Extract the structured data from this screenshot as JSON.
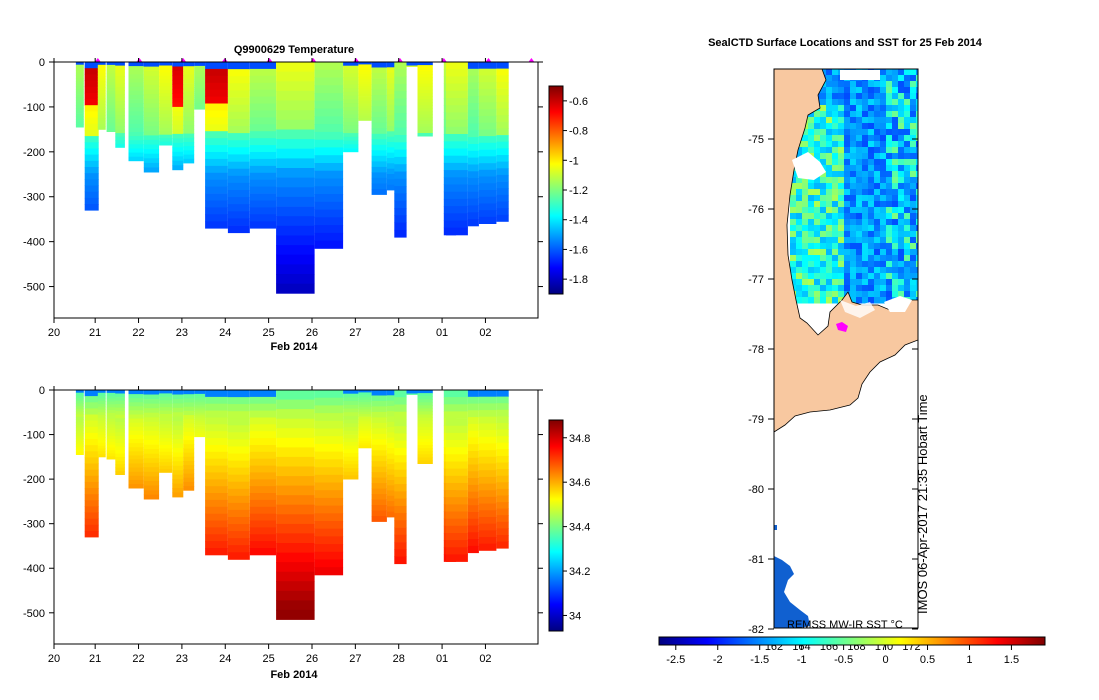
{
  "chart_data": [
    {
      "type": "heatmap",
      "id": "temperature",
      "title": "Q9900629  Temperature",
      "xlabel": "Feb 2014",
      "x_tick_labels": [
        "20",
        "21",
        "22",
        "23",
        "24",
        "25",
        "26",
        "27",
        "28",
        "01",
        "02"
      ],
      "y_tick_labels": [
        "0",
        "-100",
        "-200",
        "-300",
        "-400",
        "-500"
      ],
      "ylim": [
        -570,
        0
      ],
      "colorbar": {
        "ticks": [
          "-0.6",
          "-0.8",
          "-1",
          "-1.2",
          "-1.4",
          "-1.6",
          "-1.8"
        ],
        "range": [
          -1.9,
          -0.5
        ]
      },
      "profiles": [
        {
          "t": 20.55,
          "w": 0.18,
          "bottom": -145
        },
        {
          "t": 20.75,
          "w": 0.32,
          "bottom": -330
        },
        {
          "t": 21.05,
          "w": 0.18,
          "bottom": -150
        },
        {
          "t": 21.25,
          "w": 0.22,
          "bottom": -155
        },
        {
          "t": 21.45,
          "w": 0.22,
          "bottom": -190
        },
        {
          "t": 21.75,
          "w": 0.35,
          "bottom": -220
        },
        {
          "t": 22.1,
          "w": 0.35,
          "bottom": -245
        },
        {
          "t": 22.45,
          "w": 0.3,
          "bottom": -185
        },
        {
          "t": 22.75,
          "w": 0.25,
          "bottom": -240
        },
        {
          "t": 23.0,
          "w": 0.25,
          "bottom": -225
        },
        {
          "t": 23.25,
          "w": 0.25,
          "bottom": -105
        },
        {
          "t": 23.5,
          "w": 0.52,
          "bottom": -370
        },
        {
          "t": 24.02,
          "w": 0.5,
          "bottom": -380
        },
        {
          "t": 24.52,
          "w": 0.6,
          "bottom": -370
        },
        {
          "t": 25.12,
          "w": 0.88,
          "bottom": -515
        },
        {
          "t": 26.0,
          "w": 0.65,
          "bottom": -415
        },
        {
          "t": 26.65,
          "w": 0.35,
          "bottom": -200
        },
        {
          "t": 27.0,
          "w": 0.3,
          "bottom": -130
        },
        {
          "t": 27.3,
          "w": 0.35,
          "bottom": -295
        },
        {
          "t": 27.65,
          "w": 0.35,
          "bottom": -285
        },
        {
          "t": 27.82,
          "w": 0.28,
          "bottom": -390
        },
        {
          "t": 28.1,
          "w": 0.25,
          "bottom": -10
        },
        {
          "t": 28.35,
          "w": 0.35,
          "bottom": -165
        },
        {
          "t": 28.95,
          "w": 0.28,
          "bottom": -385
        },
        {
          "t": 29.0,
          "w": 0.5,
          "bottom": -385
        },
        {
          "t": 29.5,
          "w": 0.25,
          "bottom": -365
        },
        {
          "t": 29.75,
          "w": 0.4,
          "bottom": -360
        },
        {
          "t": 30.15,
          "w": 0.28,
          "bottom": -355
        }
      ]
    },
    {
      "type": "heatmap",
      "id": "salinity",
      "title": "",
      "xlabel": "Feb 2014",
      "x_tick_labels": [
        "20",
        "21",
        "22",
        "23",
        "24",
        "25",
        "26",
        "27",
        "28",
        "01",
        "02"
      ],
      "y_tick_labels": [
        "0",
        "-100",
        "-200",
        "-300",
        "-400",
        "-500"
      ],
      "ylim": [
        -570,
        0
      ],
      "colorbar": {
        "ticks": [
          "34.8",
          "34.6",
          "34.4",
          "34.2",
          "34"
        ],
        "range": [
          33.93,
          34.88
        ]
      }
    },
    {
      "type": "heatmap",
      "id": "map",
      "title": "SealCTD Surface Locations and SST for 25 Feb 2014",
      "y_tick_labels": [
        "-75",
        "-76",
        "-77",
        "-78",
        "-79",
        "-80",
        "-81",
        "-82"
      ],
      "x_tick_labels": [
        "162",
        "164",
        "166",
        "168",
        "170",
        "172"
      ],
      "overlay_labels": [
        "REMSS MW-IR SST °C",
        "IMOS 06-Apr-2017 21:35 Hobart Time"
      ],
      "colorbar": {
        "ticks": [
          "-2.5",
          "-2",
          "-1.5",
          "-1",
          "-0.5",
          "0",
          "0.5",
          "1",
          "1.5"
        ],
        "range": [
          -2.7,
          1.9
        ]
      }
    }
  ],
  "colors": {
    "land": "#f8c8a0",
    "marker": "#ff00ff",
    "jet": [
      "#00007f",
      "#0000ff",
      "#007fff",
      "#00ffff",
      "#7fff7f",
      "#ffff00",
      "#ff7f00",
      "#ff0000",
      "#7f0000"
    ]
  }
}
